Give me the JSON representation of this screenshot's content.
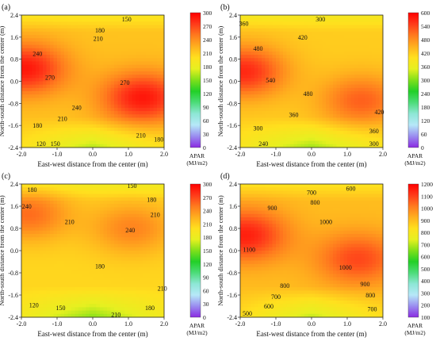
{
  "colors": {
    "scale": [
      "#8a2be2",
      "#9a8cf0",
      "#b6e8f8",
      "#8ee7d6",
      "#4ddc7a",
      "#22d028",
      "#7fe01a",
      "#e6f020",
      "#ffe01e",
      "#ffb01e",
      "#ff7a1e",
      "#ff3a1a",
      "#ff0000"
    ]
  },
  "chart_data": [
    {
      "panel_label": "(a)",
      "type": "heatmap",
      "xlabel": "East-west distance from the center (m)",
      "ylabel": "North-south distance from the center (m)",
      "x_ticks": [
        "-2.0",
        "-1.0",
        "0.0",
        "1.0",
        "2.0"
      ],
      "y_ticks": [
        "2.4",
        "1.6",
        "0.8",
        "0.0",
        "-0.8",
        "-1.6",
        "-2.4"
      ],
      "xlim": [
        -2.0,
        2.0
      ],
      "ylim": [
        -2.4,
        2.4
      ],
      "colorbar": {
        "title": "APAR",
        "unit": "(MJ/m2)",
        "min": 0,
        "max": 300,
        "ticks": [
          "300",
          "270",
          "240",
          "210",
          "180",
          "150",
          "120",
          "90",
          "60",
          "30",
          "0"
        ]
      },
      "contour_labels": [
        {
          "x": 0.95,
          "y": 2.25,
          "text": "150"
        },
        {
          "x": 0.2,
          "y": 1.85,
          "text": "180"
        },
        {
          "x": 0.15,
          "y": 1.55,
          "text": "210"
        },
        {
          "x": -1.55,
          "y": 1.0,
          "text": "240"
        },
        {
          "x": -1.2,
          "y": 0.15,
          "text": "270"
        },
        {
          "x": 0.9,
          "y": -0.05,
          "text": "270"
        },
        {
          "x": -0.45,
          "y": -0.95,
          "text": "240"
        },
        {
          "x": -0.85,
          "y": -1.35,
          "text": "210"
        },
        {
          "x": -1.55,
          "y": -1.6,
          "text": "180"
        },
        {
          "x": -1.45,
          "y": -2.25,
          "text": "120"
        },
        {
          "x": -1.05,
          "y": -2.25,
          "text": "150"
        },
        {
          "x": 1.35,
          "y": -1.95,
          "text": "210"
        },
        {
          "x": 1.85,
          "y": -2.1,
          "text": "180"
        }
      ],
      "peaks": [
        {
          "x": -1.9,
          "y": 0.45,
          "v": 290
        },
        {
          "x": 1.4,
          "y": -0.6,
          "v": 290
        }
      ],
      "base_value": 215
    },
    {
      "panel_label": "(b)",
      "type": "heatmap",
      "xlabel": "East-west distance from the center (m)",
      "ylabel": "North-south distance from the center (m)",
      "x_ticks": [
        "-2.0",
        "-1.0",
        "0.0",
        "1.0",
        "2.0"
      ],
      "y_ticks": [
        "2.4",
        "1.6",
        "0.8",
        "0.0",
        "-0.8",
        "-1.6",
        "-2.4"
      ],
      "xlim": [
        -2.0,
        2.0
      ],
      "ylim": [
        -2.4,
        2.4
      ],
      "colorbar": {
        "title": "APAR",
        "unit": "(MJ/m2)",
        "min": 0,
        "max": 600,
        "ticks": [
          "600",
          "540",
          "480",
          "420",
          "360",
          "300",
          "240",
          "180",
          "120",
          "60",
          "0"
        ]
      },
      "contour_labels": [
        {
          "x": -1.9,
          "y": 2.1,
          "text": "360"
        },
        {
          "x": 0.25,
          "y": 2.25,
          "text": "300"
        },
        {
          "x": -0.25,
          "y": 1.6,
          "text": "420"
        },
        {
          "x": -1.5,
          "y": 1.2,
          "text": "480"
        },
        {
          "x": -1.15,
          "y": 0.05,
          "text": "540"
        },
        {
          "x": -0.1,
          "y": -0.45,
          "text": "480"
        },
        {
          "x": 1.9,
          "y": -1.1,
          "text": "420"
        },
        {
          "x": -0.5,
          "y": -1.2,
          "text": "360"
        },
        {
          "x": -1.5,
          "y": -1.7,
          "text": "300"
        },
        {
          "x": -1.35,
          "y": -2.25,
          "text": "240"
        },
        {
          "x": 1.75,
          "y": -1.8,
          "text": "360"
        },
        {
          "x": 1.75,
          "y": -2.25,
          "text": "300"
        }
      ],
      "peaks": [
        {
          "x": -1.9,
          "y": 0.35,
          "v": 565
        },
        {
          "x": 1.4,
          "y": -0.7,
          "v": 520
        }
      ],
      "base_value": 420
    },
    {
      "panel_label": "(c)",
      "type": "heatmap",
      "xlabel": "East-west distance from the center (m)",
      "ylabel": "North-south distance from the center (m)",
      "x_ticks": [
        "-2.0",
        "-1.0",
        "0.0",
        "1.0",
        "2.0"
      ],
      "y_ticks": [
        "2.4",
        "1.6",
        "0.8",
        "0.0",
        "-0.8",
        "-1.6",
        "-2.4"
      ],
      "xlim": [
        -2.0,
        2.0
      ],
      "ylim": [
        -2.4,
        2.4
      ],
      "colorbar": {
        "title": "APAR",
        "unit": "(MJ/m2)",
        "min": 0,
        "max": 300,
        "ticks": [
          "300",
          "270",
          "240",
          "210",
          "180",
          "150",
          "120",
          "90",
          "60",
          "30",
          "0"
        ]
      },
      "contour_labels": [
        {
          "x": -1.7,
          "y": 2.2,
          "text": "180"
        },
        {
          "x": 1.1,
          "y": 2.35,
          "text": "150"
        },
        {
          "x": 1.65,
          "y": 1.85,
          "text": "180"
        },
        {
          "x": 1.75,
          "y": 1.3,
          "text": "210"
        },
        {
          "x": -1.85,
          "y": 1.6,
          "text": "240"
        },
        {
          "x": -0.65,
          "y": 1.05,
          "text": "210"
        },
        {
          "x": 1.05,
          "y": 0.75,
          "text": "240"
        },
        {
          "x": 0.2,
          "y": -0.55,
          "text": "180"
        },
        {
          "x": 1.95,
          "y": -1.35,
          "text": "210"
        },
        {
          "x": -1.65,
          "y": -1.95,
          "text": "120"
        },
        {
          "x": -0.9,
          "y": -2.05,
          "text": "150"
        },
        {
          "x": 0.65,
          "y": -2.3,
          "text": "210"
        },
        {
          "x": 1.6,
          "y": -2.05,
          "text": "180"
        }
      ],
      "peaks": [
        {
          "x": -1.8,
          "y": 1.3,
          "v": 255
        },
        {
          "x": 1.1,
          "y": 0.8,
          "v": 245
        }
      ],
      "base_value": 205
    },
    {
      "panel_label": "(d)",
      "type": "heatmap",
      "xlabel": "East-west distance from the center (m)",
      "ylabel": "North-south distance from the center (m)",
      "x_ticks": [
        "-2.0",
        "-1.0",
        "0.0",
        "1.0",
        "2.0"
      ],
      "y_ticks": [
        "2.4",
        "1.6",
        "0.8",
        "0.0",
        "-0.8",
        "-1.6",
        "-2.4"
      ],
      "xlim": [
        -2.0,
        2.0
      ],
      "ylim": [
        -2.4,
        2.4
      ],
      "colorbar": {
        "title": "APAR",
        "unit": "(MJ/m2)",
        "min": 100,
        "max": 1200,
        "ticks": [
          "1200",
          "1100",
          "1000",
          "900",
          "800",
          "700",
          "600",
          "500",
          "400",
          "300",
          "200",
          "100"
        ]
      },
      "contour_labels": [
        {
          "x": 0.0,
          "y": 2.1,
          "text": "700"
        },
        {
          "x": 1.1,
          "y": 2.25,
          "text": "600"
        },
        {
          "x": 0.1,
          "y": 1.75,
          "text": "800"
        },
        {
          "x": -1.1,
          "y": 1.55,
          "text": "900"
        },
        {
          "x": 0.4,
          "y": 1.05,
          "text": "1000"
        },
        {
          "x": -1.75,
          "y": 0.05,
          "text": "1100"
        },
        {
          "x": 0.95,
          "y": -0.6,
          "text": "1000"
        },
        {
          "x": 1.5,
          "y": -1.2,
          "text": "900"
        },
        {
          "x": -0.75,
          "y": -1.25,
          "text": "800"
        },
        {
          "x": -1.0,
          "y": -1.65,
          "text": "700"
        },
        {
          "x": 1.65,
          "y": -1.6,
          "text": "800"
        },
        {
          "x": -1.2,
          "y": -2.0,
          "text": "600"
        },
        {
          "x": -1.8,
          "y": -2.25,
          "text": "500"
        },
        {
          "x": 1.7,
          "y": -2.1,
          "text": "700"
        }
      ],
      "peaks": [
        {
          "x": -1.85,
          "y": 0.55,
          "v": 1150
        },
        {
          "x": 1.3,
          "y": -0.3,
          "v": 1090
        }
      ],
      "base_value": 900
    }
  ]
}
